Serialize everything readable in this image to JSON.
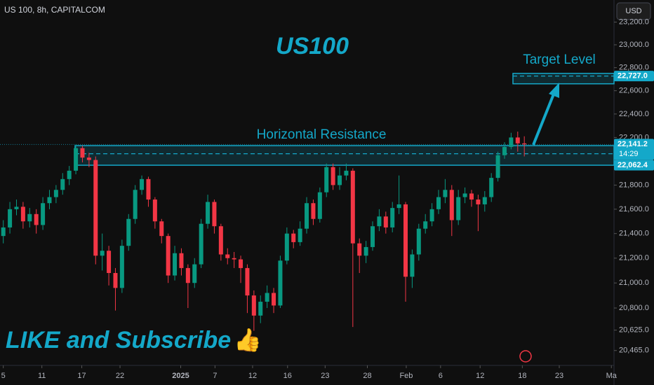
{
  "chart_data": {
    "type": "candlestick",
    "symbol": "US 100, 8h, CAPITALCOM",
    "currency": "USD",
    "title": "US100",
    "footer_text": "LIKE and Subscribe",
    "ylog": true,
    "ylim": [
      20349,
      23397
    ],
    "yticks": [
      {
        "value": 23200,
        "label": "23,200.0"
      },
      {
        "value": 23000,
        "label": "23,000.0"
      },
      {
        "value": 22800,
        "label": "22,800.0"
      },
      {
        "value": 22600,
        "label": "22,600.0"
      },
      {
        "value": 22400,
        "label": "22,400.0"
      },
      {
        "value": 22200,
        "label": "22,200.0"
      },
      {
        "value": 21800,
        "label": "21,800.0"
      },
      {
        "value": 21600,
        "label": "21,600.0"
      },
      {
        "value": 21400,
        "label": "21,400.0"
      },
      {
        "value": 21200,
        "label": "21,200.0"
      },
      {
        "value": 21000,
        "label": "21,000.0"
      },
      {
        "value": 20800,
        "label": "20,800.0"
      },
      {
        "value": 20625,
        "label": "20,625.0"
      },
      {
        "value": 20465,
        "label": "20,465.0"
      }
    ],
    "xlim": [
      -0.5,
      92.6
    ],
    "xticks": [
      {
        "value": 0,
        "label": "5"
      },
      {
        "value": 5.85,
        "label": "11"
      },
      {
        "value": 11.9,
        "label": "17"
      },
      {
        "value": 17.7,
        "label": "22"
      },
      {
        "value": 26.9,
        "label": "2025"
      },
      {
        "value": 32.1,
        "label": "7"
      },
      {
        "value": 37.8,
        "label": "12"
      },
      {
        "value": 43.1,
        "label": "16"
      },
      {
        "value": 48.8,
        "label": "23"
      },
      {
        "value": 55.2,
        "label": "28"
      },
      {
        "value": 61.1,
        "label": "Feb"
      },
      {
        "value": 66.3,
        "label": "6"
      },
      {
        "value": 72.3,
        "label": "12"
      },
      {
        "value": 78.7,
        "label": "18"
      },
      {
        "value": 84.3,
        "label": "23"
      },
      {
        "value": 92.2,
        "label": "Ma"
      }
    ],
    "up_color": "#089981",
    "down_color": "#f23645",
    "open": [
      21380,
      21450,
      21600,
      21620,
      21500,
      21560,
      21470,
      21650,
      21700,
      21760,
      21850,
      21920,
      22110,
      22030,
      22010,
      21220,
      21260,
      21080,
      20960,
      21300,
      21520,
      21760,
      21850,
      21680,
      21500,
      21380,
      21060,
      21240,
      21120,
      21000,
      21150,
      21480,
      21660,
      21460,
      21230,
      21200,
      21190,
      21120,
      20900,
      20740,
      20850,
      20920,
      20820,
      21180,
      21400,
      21330,
      21440,
      21650,
      21520,
      21740,
      21950,
      21800,
      21880,
      21920,
      21320,
      21220,
      21290,
      21460,
      21540,
      21450,
      21610,
      21640,
      21050,
      21230,
      21440,
      21500,
      21600,
      21700,
      21760,
      21510,
      21700,
      21730,
      21680,
      21640,
      21700,
      21860,
      22050,
      22120,
      22200,
      22150
    ],
    "high": [
      21510,
      21660,
      21680,
      21660,
      21610,
      21600,
      21700,
      21760,
      21800,
      21900,
      21960,
      22140,
      22130,
      22070,
      22040,
      21400,
      21300,
      21120,
      21350,
      21560,
      21800,
      21880,
      21870,
      21700,
      21520,
      21400,
      21300,
      21280,
      21150,
      21200,
      21520,
      21720,
      21680,
      21480,
      21280,
      21250,
      21220,
      21150,
      20940,
      20900,
      20980,
      20960,
      21220,
      21450,
      21430,
      21500,
      21700,
      21680,
      21780,
      21980,
      21980,
      21950,
      21980,
      21940,
      21360,
      21340,
      21500,
      21600,
      21580,
      21660,
      21880,
      21660,
      21270,
      21480,
      21560,
      21650,
      21760,
      21850,
      21800,
      21760,
      21780,
      21760,
      21720,
      21750,
      21900,
      22080,
      22160,
      22240,
      22250,
      22210
    ],
    "low": [
      21320,
      21400,
      21550,
      21440,
      21450,
      21400,
      21430,
      21600,
      21650,
      21720,
      21800,
      21890,
      21990,
      21950,
      21150,
      21100,
      20980,
      20780,
      20920,
      21260,
      21480,
      21720,
      21620,
      21440,
      21320,
      21000,
      21020,
      21060,
      20800,
      20960,
      21120,
      21440,
      21400,
      21180,
      21150,
      21120,
      21000,
      20760,
      20620,
      20680,
      20800,
      20760,
      20800,
      21150,
      21280,
      21300,
      21400,
      21470,
      21490,
      21700,
      21760,
      21760,
      21840,
      20650,
      21080,
      21160,
      21260,
      21420,
      21400,
      21410,
      21560,
      20850,
      20960,
      21180,
      21400,
      21460,
      21560,
      21650,
      21380,
      21470,
      21650,
      21620,
      21420,
      21580,
      21660,
      21830,
      22020,
      22100,
      22080,
      22040
    ],
    "close": [
      21450,
      21600,
      21620,
      21500,
      21560,
      21470,
      21650,
      21700,
      21760,
      21850,
      21920,
      22110,
      22030,
      22010,
      21220,
      21260,
      21080,
      20960,
      21300,
      21520,
      21760,
      21850,
      21680,
      21500,
      21380,
      21060,
      21240,
      21120,
      21000,
      21150,
      21480,
      21660,
      21460,
      21230,
      21200,
      21190,
      21120,
      20900,
      20740,
      20850,
      20920,
      20820,
      21180,
      21400,
      21330,
      21440,
      21650,
      21520,
      21740,
      21950,
      21800,
      21880,
      21920,
      21320,
      21220,
      21290,
      21460,
      21540,
      21450,
      21610,
      21640,
      21050,
      21230,
      21440,
      21500,
      21600,
      21700,
      21760,
      21510,
      21700,
      21730,
      21680,
      21640,
      21700,
      21860,
      22050,
      22120,
      22200,
      22150,
      22141.2
    ],
    "resistance_zone": {
      "label": "Horizontal Resistance",
      "low": 21966,
      "high": 22131,
      "level": {
        "value": 22062.4,
        "label": "22,062.4"
      }
    },
    "target_zone": {
      "label": "Target Level",
      "low": 22660,
      "high": 22750,
      "level": {
        "value": 22727,
        "label": "22,727.0"
      }
    },
    "last_price": {
      "value": 22141.2,
      "label": "22,141.2",
      "countdown": "14:29"
    },
    "zone_color": "#14a8c9"
  }
}
